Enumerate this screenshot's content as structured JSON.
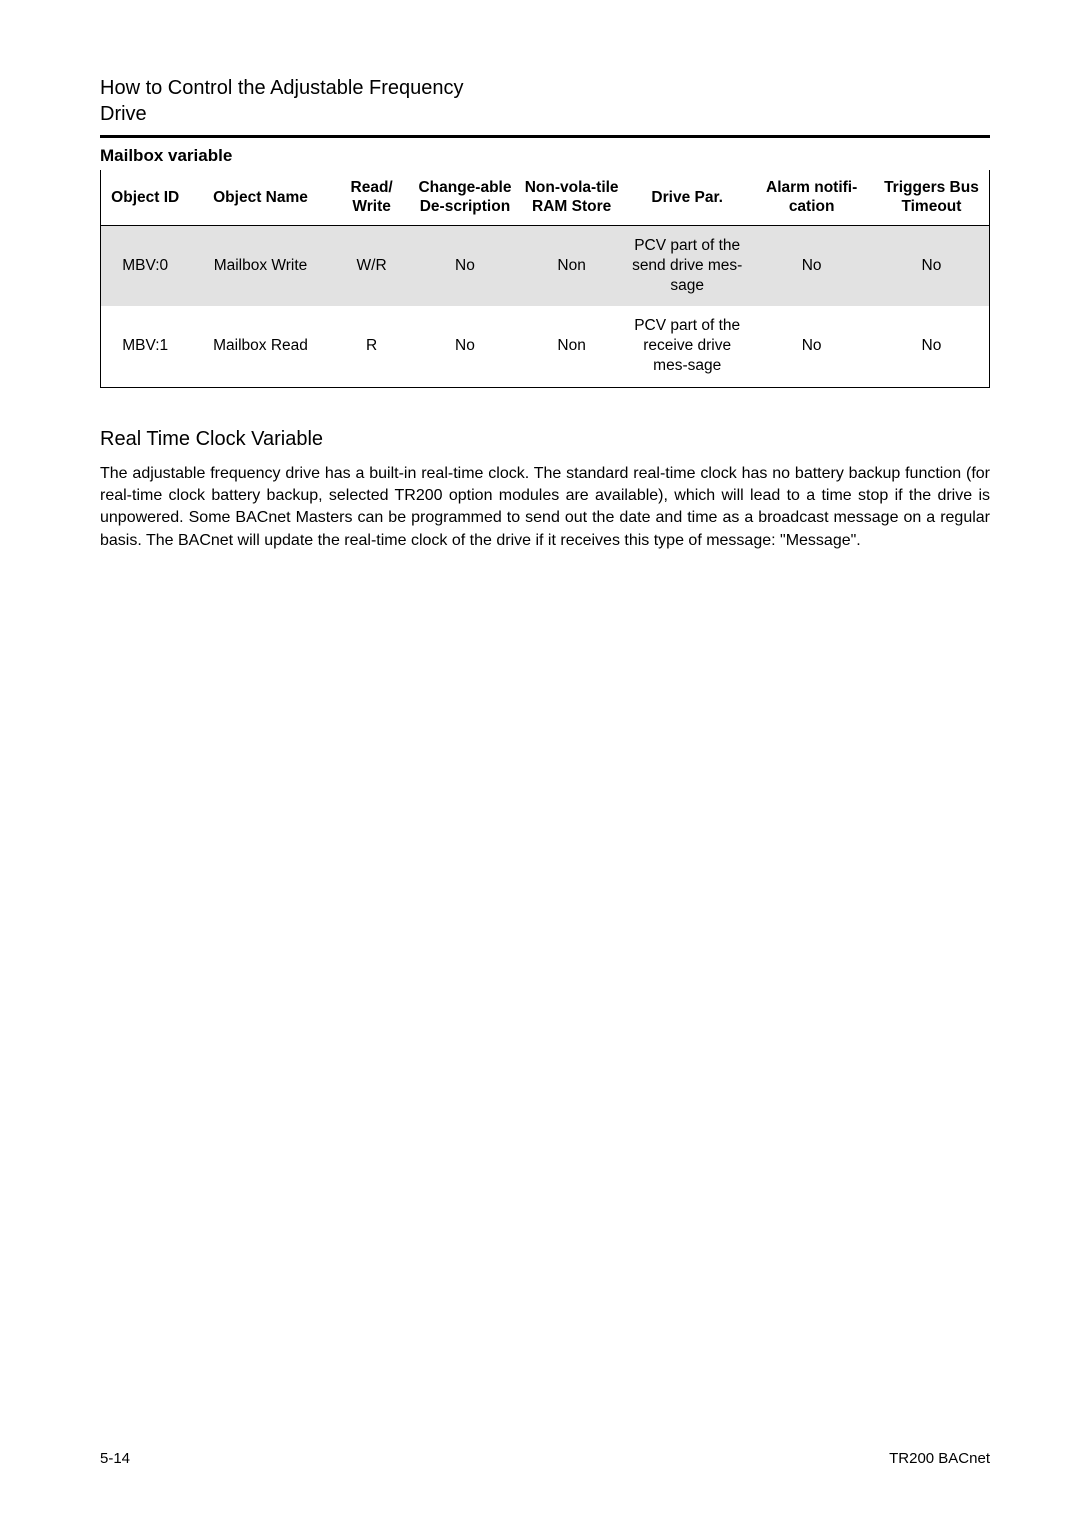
{
  "header": {
    "line1": "How to Control the Adjustable Frequency",
    "line2": "Drive"
  },
  "tableSection": {
    "title": "Mailbox variable",
    "columns": [
      "Object ID",
      "Object Name",
      "Read/ Write",
      "Change-able De-scription",
      "Non-vola-tile RAM Store",
      "Drive Par.",
      "Alarm notifi-cation",
      "Triggers Bus Timeout"
    ],
    "rows": [
      {
        "cells": [
          "MBV:0",
          "Mailbox Write",
          "W/R",
          "No",
          "Non",
          "PCV part of the send drive mes-sage",
          "No",
          "No"
        ],
        "shaded": true
      },
      {
        "cells": [
          "MBV:1",
          "Mailbox Read",
          "R",
          "No",
          "Non",
          "PCV part of the receive drive mes-sage",
          "No",
          "No"
        ],
        "shaded": false
      }
    ]
  },
  "subsection": {
    "title": "Real Time Clock Variable",
    "paragraph": "The adjustable frequency drive has a built-in real-time clock. The standard real-time clock has no battery backup function (for real-time clock battery backup, selected TR200 option modules are available), which will lead to a time stop if the drive is unpowered. Some BACnet Masters can be programmed to send out the date and time as a broadcast message on a regular basis. The BACnet will update the real-time clock of the drive if it receives this type of message: \"Message\"."
  },
  "footer": {
    "left": "5-14",
    "right": "TR200 BACnet"
  }
}
